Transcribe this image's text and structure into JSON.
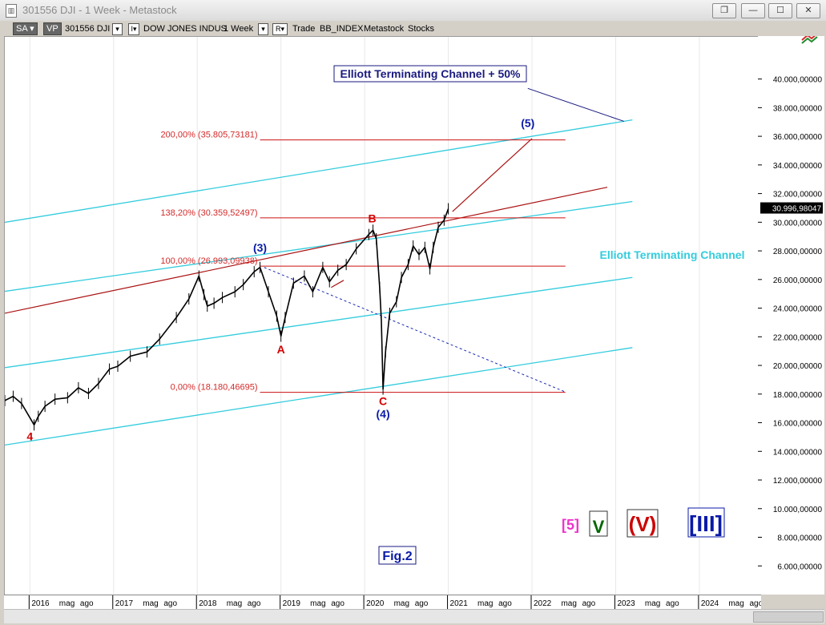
{
  "window": {
    "title": "301556 DJI - 1 Week - Metastock",
    "icon": "chart-document-icon",
    "buttons": [
      "restore-icon",
      "minimize-icon",
      "maximize-icon",
      "close-icon"
    ]
  },
  "toolbar": {
    "sa": "SA",
    "vp": "VP",
    "symbol": "301556 DJI",
    "i_label": "I",
    "name": "DOW JONES INDUS",
    "period": "1 Week",
    "r_label": "R",
    "trade": "Trade",
    "index": "BB_INDEX",
    "source": "Metastock",
    "type": "Stocks"
  },
  "chart_data": {
    "type": "line",
    "title": "",
    "y_ticks": [
      "40.000,00000",
      "38.000,00000",
      "36.000,00000",
      "34.000,00000",
      "32.000,00000",
      "30.000,00000",
      "28.000,00000",
      "26.000,00000",
      "24.000,00000",
      "22.000,00000",
      "20.000,00000",
      "18.000,00000",
      "16.000,00000",
      "14.000,00000",
      "12.000,00000",
      "10.000,00000",
      "8.000,00000",
      "6.000,00000"
    ],
    "y_tick_values": [
      40000,
      38000,
      36000,
      34000,
      32000,
      30000,
      28000,
      26000,
      24000,
      22000,
      20000,
      18000,
      16000,
      14000,
      12000,
      10000,
      8000,
      6000
    ],
    "ylim": [
      4000,
      43000
    ],
    "last_price_label": "30.996,98047",
    "x_ticks": [
      "2016",
      "mag",
      "ago",
      "2017",
      "mag",
      "ago",
      "2018",
      "mag",
      "ago",
      "2019",
      "mag",
      "ago",
      "2020",
      "mag",
      "ago",
      "2021",
      "mag",
      "ago",
      "2022",
      "mag",
      "ago",
      "2023",
      "mag",
      "ago",
      "2024",
      "mag",
      "ago"
    ],
    "x_tick_dates": [
      2016.0,
      2016.33,
      2016.58,
      2017.0,
      2017.33,
      2017.58,
      2018.0,
      2018.33,
      2018.58,
      2019.0,
      2019.33,
      2019.58,
      2020.0,
      2020.33,
      2020.58,
      2021.0,
      2021.33,
      2021.58,
      2022.0,
      2022.33,
      2022.58,
      2023.0,
      2023.33,
      2023.58,
      2024.0,
      2024.33,
      2024.58
    ],
    "xlim": [
      2015.7,
      2024.7
    ],
    "series": [
      {
        "color": "#000000",
        "points": [
          [
            2015.7,
            17600
          ],
          [
            2015.8,
            17900
          ],
          [
            2015.9,
            17400
          ],
          [
            2016.05,
            15900
          ],
          [
            2016.1,
            16500
          ],
          [
            2016.18,
            17200
          ],
          [
            2016.3,
            17700
          ],
          [
            2016.45,
            17800
          ],
          [
            2016.58,
            18500
          ],
          [
            2016.7,
            18100
          ],
          [
            2016.82,
            18800
          ],
          [
            2016.95,
            19800
          ],
          [
            2017.05,
            20000
          ],
          [
            2017.2,
            20700
          ],
          [
            2017.4,
            21000
          ],
          [
            2017.55,
            21900
          ],
          [
            2017.75,
            23400
          ],
          [
            2017.9,
            24700
          ],
          [
            2018.02,
            26300
          ],
          [
            2018.08,
            25000
          ],
          [
            2018.12,
            24200
          ],
          [
            2018.2,
            24400
          ],
          [
            2018.3,
            24800
          ],
          [
            2018.45,
            25200
          ],
          [
            2018.55,
            25700
          ],
          [
            2018.68,
            26600
          ],
          [
            2018.75,
            26900
          ],
          [
            2018.85,
            25200
          ],
          [
            2018.95,
            23500
          ],
          [
            2019.0,
            22100
          ],
          [
            2019.05,
            23400
          ],
          [
            2019.15,
            25800
          ],
          [
            2019.28,
            26300
          ],
          [
            2019.38,
            25200
          ],
          [
            2019.5,
            26900
          ],
          [
            2019.58,
            25900
          ],
          [
            2019.68,
            26700
          ],
          [
            2019.78,
            27100
          ],
          [
            2019.9,
            28200
          ],
          [
            2020.05,
            29200
          ],
          [
            2020.1,
            29500
          ],
          [
            2020.14,
            28900
          ],
          [
            2020.18,
            25500
          ],
          [
            2020.2,
            23200
          ],
          [
            2020.22,
            18400
          ],
          [
            2020.25,
            21000
          ],
          [
            2020.3,
            23700
          ],
          [
            2020.38,
            24500
          ],
          [
            2020.44,
            26200
          ],
          [
            2020.52,
            27100
          ],
          [
            2020.58,
            28400
          ],
          [
            2020.65,
            27800
          ],
          [
            2020.72,
            28300
          ],
          [
            2020.78,
            26800
          ],
          [
            2020.82,
            28300
          ],
          [
            2020.88,
            29700
          ],
          [
            2020.95,
            30200
          ],
          [
            2021.0,
            30996
          ]
        ]
      }
    ],
    "levels": [
      {
        "label": "200,00% (35.805,73181)",
        "value": 35806
      },
      {
        "label": "138,20% (30.359,52497)",
        "value": 30360
      },
      {
        "label": "100,00% (26.993,09938)",
        "value": 26993
      },
      {
        "label": "0,00% (18.180,46695)",
        "value": 18180
      }
    ],
    "wave_labels": [
      {
        "text": "4",
        "x": 2016.0,
        "y": 14840,
        "color": "#d40000"
      },
      {
        "text": "(3)",
        "x": 2018.75,
        "y": 28000,
        "color": "#0a1aa8"
      },
      {
        "text": "A",
        "x": 2019.0,
        "y": 20900,
        "color": "#d40000"
      },
      {
        "text": "B",
        "x": 2020.09,
        "y": 30050,
        "color": "#d40000"
      },
      {
        "text": "C",
        "x": 2020.22,
        "y": 17300,
        "color": "#d40000"
      },
      {
        "text": "(4)",
        "x": 2020.22,
        "y": 16400,
        "color": "#0a1aa8"
      },
      {
        "text": "(5)",
        "x": 2021.95,
        "y": 36700,
        "color": "#0a1aa8"
      }
    ],
    "annotations": {
      "channel_50": "Elliott Terminating Channel + 50%",
      "channel": "Elliott Terminating Channel",
      "fig": "Fig.2",
      "deg_5": "[5]",
      "deg_v": "V",
      "deg_V": "(V)",
      "deg_III": "[III]"
    },
    "colors": {
      "price": "#000000",
      "fib_line": "#cc1111",
      "fib_text": "#d42a2a",
      "channel": "#33ccdd",
      "trend_red": "#aa1111",
      "dashed": "#1a2ab0",
      "wave_blue": "#0a1aa8",
      "wave_red": "#d40000",
      "pink": "#ee33cc",
      "green": "#006600"
    },
    "lines": {
      "channel": [
        {
          "from": [
            2015.7,
            30050
          ],
          "to": [
            2023.2,
            37200
          ]
        },
        {
          "from": [
            2015.7,
            25230
          ],
          "to": [
            2023.2,
            31500
          ]
        },
        {
          "from": [
            2015.7,
            19900
          ],
          "to": [
            2023.2,
            26200
          ]
        },
        {
          "from": [
            2015.7,
            14500
          ],
          "to": [
            2023.2,
            21300
          ]
        }
      ],
      "trend_red": [
        {
          "from": [
            2015.7,
            23700
          ],
          "to": [
            2022.9,
            32500
          ]
        },
        {
          "from": [
            2021.05,
            30800
          ],
          "to": [
            2022.0,
            35900
          ]
        },
        {
          "from": [
            2019.6,
            25500
          ],
          "to": [
            2019.75,
            26000
          ]
        }
      ],
      "dashed": [
        {
          "from": [
            2018.8,
            26900
          ],
          "to": [
            2022.4,
            18200
          ]
        }
      ],
      "channel_50_pointer": {
        "from": [
          2021.95,
          39400
        ],
        "to": [
          2023.1,
          37100
        ]
      },
      "fib_span": [
        2018.75,
        2022.4
      ]
    }
  }
}
